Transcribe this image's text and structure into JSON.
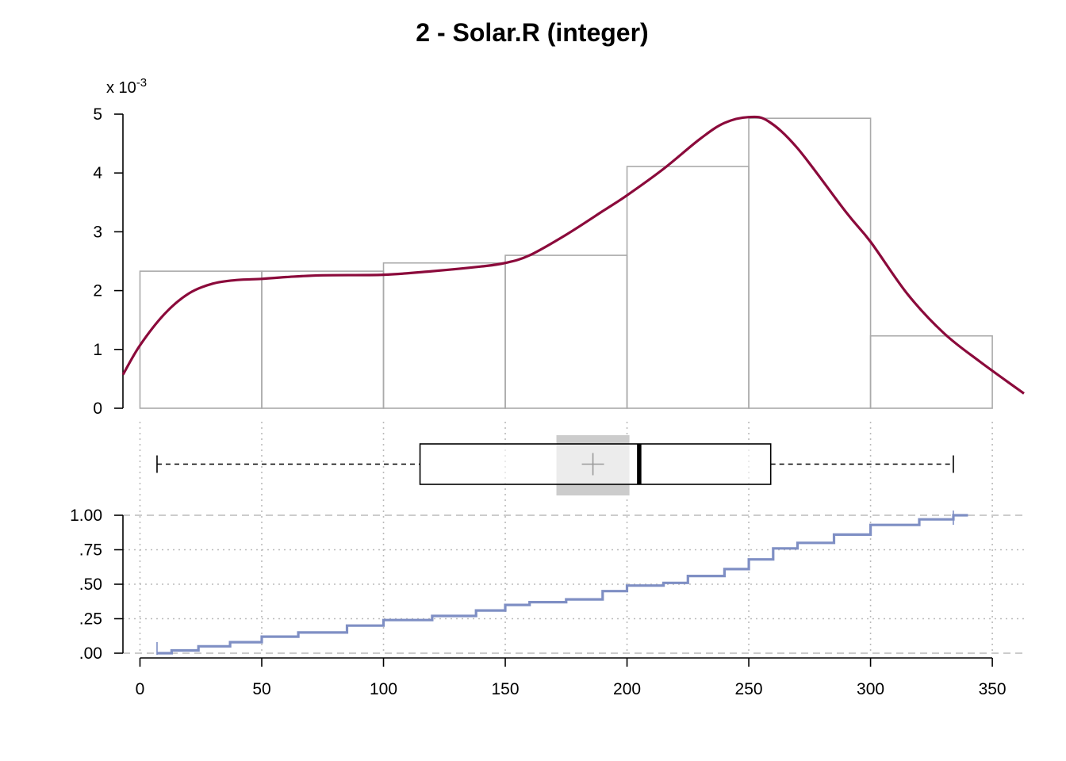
{
  "chart_data": {
    "title": "2 - Solar.R (integer)",
    "x_axis": {
      "range": [
        -7,
        363
      ],
      "ticks": [
        0,
        50,
        100,
        150,
        200,
        250,
        300,
        350
      ],
      "tick_labels": [
        "0",
        "50",
        "100",
        "150",
        "200",
        "250",
        "300",
        "350"
      ]
    },
    "panels": [
      {
        "type": "histogram",
        "y_multiplier_label": "x 10",
        "y_multiplier_exponent": "-3",
        "y_ticks": [
          0,
          1,
          2,
          3,
          4,
          5
        ],
        "y_tick_labels": [
          "0",
          "1",
          "2",
          "3",
          "4",
          "5"
        ],
        "ylim": [
          0,
          5
        ],
        "bins": [
          {
            "from": 0,
            "to": 50,
            "density": 2.33
          },
          {
            "from": 50,
            "to": 100,
            "density": 2.33
          },
          {
            "from": 100,
            "to": 150,
            "density": 2.47
          },
          {
            "from": 150,
            "to": 200,
            "density": 2.6
          },
          {
            "from": 200,
            "to": 250,
            "density": 4.11
          },
          {
            "from": 250,
            "to": 300,
            "density": 4.93
          },
          {
            "from": 300,
            "to": 350,
            "density": 1.23
          }
        ],
        "bar_color": "#aaaaaa",
        "density_curve": {
          "color": "#8b0a3b",
          "x": [
            -7,
            0,
            10,
            20,
            30,
            40,
            50,
            60,
            75,
            100,
            120,
            140,
            150,
            160,
            175,
            190,
            200,
            215,
            230,
            240,
            250,
            258,
            270,
            290,
            300,
            315,
            330,
            345,
            363
          ],
          "y": [
            0.57,
            1.07,
            1.6,
            1.95,
            2.12,
            2.18,
            2.2,
            2.23,
            2.26,
            2.27,
            2.33,
            2.41,
            2.47,
            2.6,
            2.95,
            3.35,
            3.62,
            4.07,
            4.58,
            4.85,
            4.95,
            4.88,
            4.42,
            3.33,
            2.83,
            1.95,
            1.28,
            0.79,
            0.25
          ]
        }
      },
      {
        "type": "boxplot",
        "min": 7,
        "q1": 115,
        "median": 205,
        "q3": 259,
        "max": 334,
        "mean": 186,
        "ci_low": 171,
        "ci_high": 201,
        "ci_color": "#cccccc"
      },
      {
        "type": "ecdf",
        "color": "#7f8fc4",
        "y_ticks": [
          0,
          0.25,
          0.5,
          0.75,
          1.0
        ],
        "y_tick_labels": [
          ".00",
          ".25",
          ".50",
          ".75",
          "1.00"
        ],
        "x": [
          7,
          13,
          24,
          37,
          50,
          65,
          85,
          100,
          120,
          138,
          150,
          160,
          175,
          190,
          200,
          215,
          225,
          240,
          250,
          260,
          270,
          285,
          300,
          320,
          334
        ],
        "y": [
          0.0,
          0.02,
          0.05,
          0.08,
          0.12,
          0.15,
          0.2,
          0.24,
          0.27,
          0.31,
          0.35,
          0.37,
          0.39,
          0.45,
          0.49,
          0.51,
          0.56,
          0.61,
          0.68,
          0.76,
          0.8,
          0.86,
          0.93,
          0.97,
          1.0
        ]
      }
    ]
  }
}
